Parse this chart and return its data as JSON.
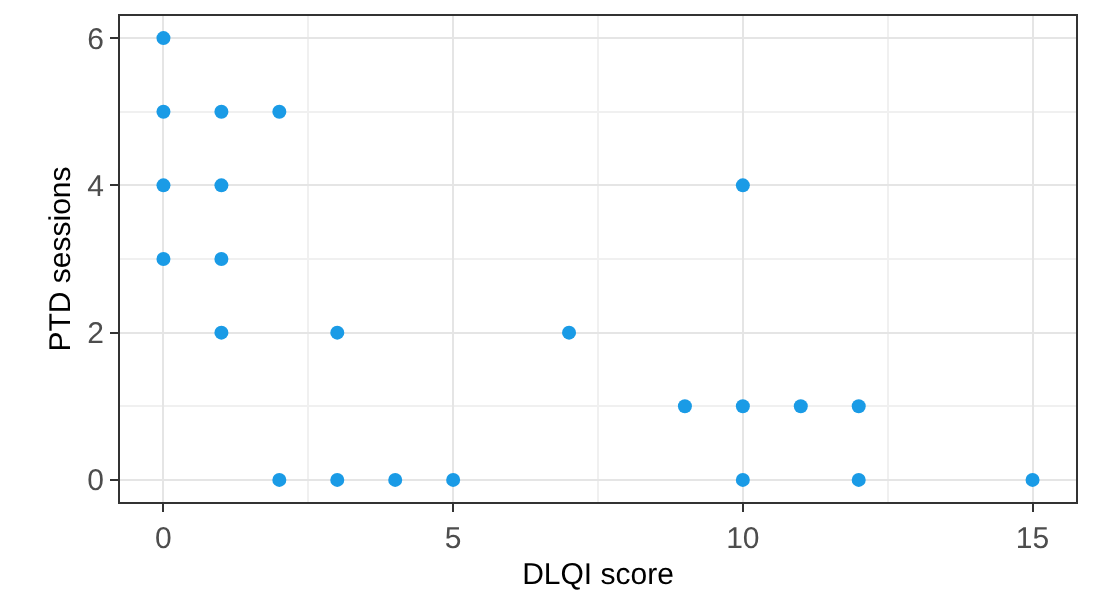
{
  "chart_data": {
    "type": "scatter",
    "xlabel": "DLQI score",
    "ylabel": "PTD sessions",
    "x": [
      0,
      0,
      0,
      0,
      1,
      1,
      1,
      1,
      2,
      2,
      3,
      3,
      4,
      5,
      7,
      9,
      10,
      10,
      10,
      11,
      12,
      12,
      15
    ],
    "series": [
      {
        "color": "#1a9be6",
        "values": [
          6,
          5,
          4,
          3,
          5,
          4,
          3,
          2,
          5,
          0,
          2,
          0,
          0,
          0,
          2,
          1,
          4,
          1,
          0,
          1,
          1,
          0,
          0
        ]
      }
    ],
    "xlim": [
      -0.75,
      15.75
    ],
    "ylim": [
      -0.3,
      6.3
    ],
    "xticks": [
      0,
      5,
      10,
      15
    ],
    "yticks": [
      0,
      2,
      4,
      6
    ],
    "grid": true,
    "marker": "circle",
    "legend": false
  }
}
